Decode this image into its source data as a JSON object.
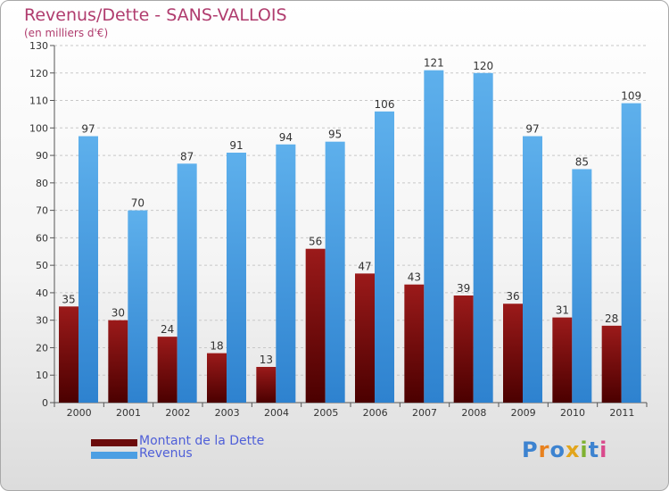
{
  "title": "Revenus/Dette - SANS-VALLOIS",
  "subtitle": "(en milliers d'€)",
  "legend": [
    {
      "label": "Montant de la Dette",
      "color": "#7a0c0c"
    },
    {
      "label": "Revenus",
      "color": "#4c9fe3"
    }
  ],
  "logo": {
    "text": "Proxiti",
    "colors": [
      "#3d83d0",
      "#e8811e",
      "#3d83d0",
      "#e2a51c",
      "#7fb131",
      "#3d83d0",
      "#d94a8c"
    ]
  },
  "chart_data": {
    "type": "bar",
    "categories": [
      "2000",
      "2001",
      "2002",
      "2003",
      "2004",
      "2005",
      "2006",
      "2007",
      "2008",
      "2009",
      "2010",
      "2011"
    ],
    "series": [
      {
        "name": "Montant de la Dette",
        "values": [
          35,
          30,
          24,
          18,
          13,
          56,
          47,
          43,
          39,
          36,
          31,
          28
        ]
      },
      {
        "name": "Revenus",
        "values": [
          97,
          70,
          87,
          91,
          94,
          95,
          106,
          121,
          120,
          97,
          85,
          109
        ]
      }
    ],
    "ylim": [
      0,
      130
    ],
    "ytick_step": 10,
    "grid": true
  }
}
